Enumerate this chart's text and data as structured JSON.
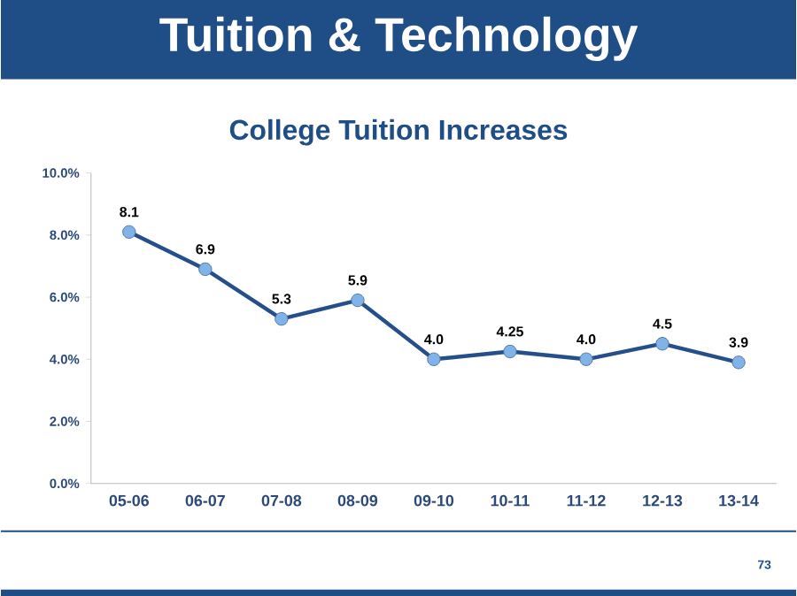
{
  "chart_data": {
    "type": "line",
    "title": "Tuition & Technology",
    "subtitle": "College Tuition Increases",
    "categories": [
      "05-06",
      "06-07",
      "07-08",
      "08-09",
      "09-10",
      "10-11",
      "11-12",
      "12-13",
      "13-14"
    ],
    "values": [
      8.1,
      6.9,
      5.3,
      5.9,
      4.0,
      4.25,
      4.0,
      4.5,
      3.9
    ],
    "value_labels": [
      "8.1",
      "6.9",
      "5.3",
      "5.9",
      "4.0",
      "4.25",
      "4.0",
      "4.5",
      "3.9"
    ],
    "color": "#254f8a",
    "marker": "circle",
    "line_style": "solid",
    "grid": false,
    "ylim": [
      0,
      10
    ],
    "yticks": [
      {
        "value": 0,
        "label": "0.0%"
      },
      {
        "value": 2,
        "label": "2.0%"
      },
      {
        "value": 4,
        "label": "4.0%"
      },
      {
        "value": 6,
        "label": "6.0%"
      },
      {
        "value": 8,
        "label": "8.0%"
      },
      {
        "value": 10,
        "label": "10.0%"
      }
    ],
    "annotations": [
      "73"
    ]
  }
}
